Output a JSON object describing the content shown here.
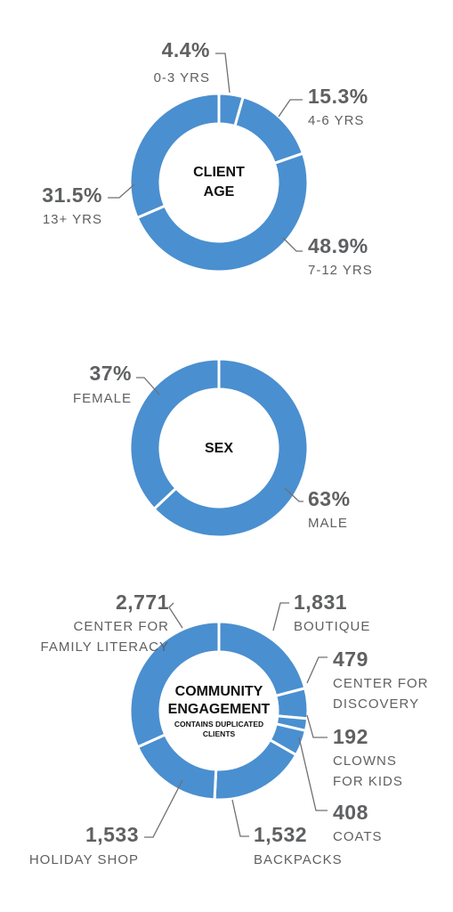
{
  "colors": {
    "slice": "#4a8fd0",
    "text": "#5f6062",
    "center_text": "#111111"
  },
  "chart_data": [
    {
      "type": "donut",
      "title": "CLIENT AGE",
      "center_lines": [
        "CLIENT",
        "AGE"
      ],
      "slices": [
        {
          "value_label": "4.4%",
          "label_lines": [
            "0-3 YRS"
          ],
          "value": 4.4
        },
        {
          "value_label": "15.3%",
          "label_lines": [
            "4-6 YRS"
          ],
          "value": 15.3
        },
        {
          "value_label": "48.9%",
          "label_lines": [
            "7-12 YRS"
          ],
          "value": 48.9
        },
        {
          "value_label": "31.5%",
          "label_lines": [
            "13+ YRS"
          ],
          "value": 31.5
        }
      ]
    },
    {
      "type": "donut",
      "title": "SEX",
      "center_lines": [
        "SEX"
      ],
      "slices": [
        {
          "value_label": "63%",
          "label_lines": [
            "MALE"
          ],
          "value": 63
        },
        {
          "value_label": "37%",
          "label_lines": [
            "FEMALE"
          ],
          "value": 37
        }
      ]
    },
    {
      "type": "donut",
      "title": "COMMUNITY ENGAGEMENT",
      "center_lines": [
        "COMMUNITY",
        "ENGAGEMENT"
      ],
      "center_note_lines": [
        "CONTAINS DUPLICATED",
        "CLIENTS"
      ],
      "slices": [
        {
          "value_label": "1,831",
          "label_lines": [
            "BOUTIQUE"
          ],
          "value": 1831
        },
        {
          "value_label": "479",
          "label_lines": [
            "CENTER FOR",
            "DISCOVERY"
          ],
          "value": 479
        },
        {
          "value_label": "192",
          "label_lines": [
            "CLOWNS",
            "FOR KIDS"
          ],
          "value": 192
        },
        {
          "value_label": "408",
          "label_lines": [
            "COATS"
          ],
          "value": 408
        },
        {
          "value_label": "1,532",
          "label_lines": [
            "BACKPACKS"
          ],
          "value": 1532
        },
        {
          "value_label": "1,533",
          "label_lines": [
            "HOLIDAY SHOP"
          ],
          "value": 1533
        },
        {
          "value_label": "2,771",
          "label_lines": [
            "CENTER FOR",
            "FAMILY LITERACY"
          ],
          "value": 2771
        }
      ]
    }
  ]
}
